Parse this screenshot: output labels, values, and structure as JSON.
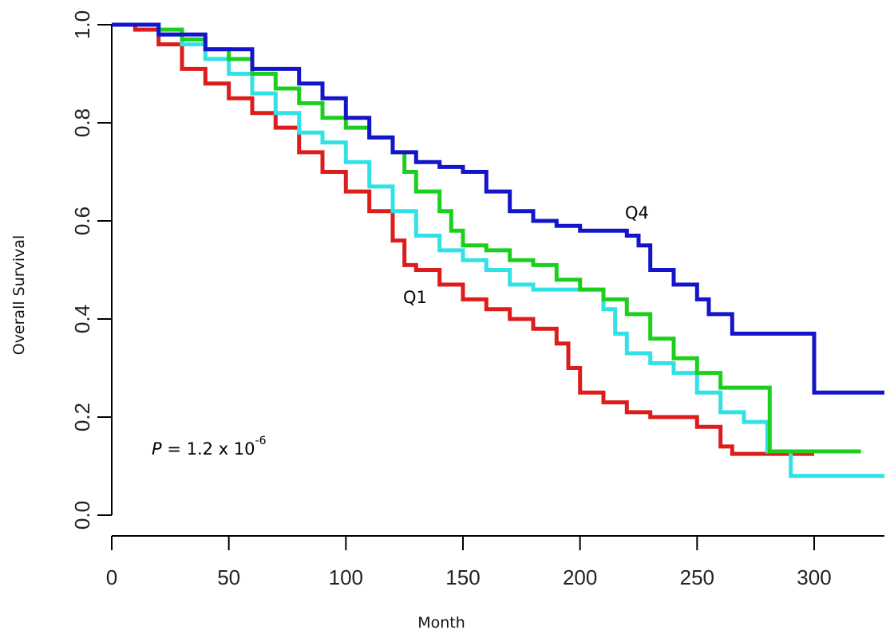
{
  "chart_data": {
    "type": "line",
    "step": true,
    "xlabel": "Month",
    "ylabel": "Overall Survival",
    "xlim": [
      0,
      330
    ],
    "ylim": [
      0,
      1.0
    ],
    "xticks": [
      0,
      50,
      100,
      150,
      200,
      250,
      300
    ],
    "yticks": [
      0.0,
      0.2,
      0.4,
      0.6,
      0.8,
      1.0
    ],
    "ytick_labels": [
      "0.0",
      "0.2",
      "0.4",
      "0.6",
      "0.8",
      "1.0"
    ],
    "grid": false,
    "annotations": {
      "q4_label": "Q4",
      "q1_label": "Q1",
      "p_value": {
        "italic": "P",
        "text": " = 1.2 x 10",
        "exponent": "-6"
      }
    },
    "series": [
      {
        "color": "#dd1c1c",
        "label_ref": "q1_label",
        "x": [
          0,
          10,
          20,
          30,
          40,
          50,
          60,
          70,
          80,
          90,
          100,
          110,
          120,
          125,
          130,
          140,
          150,
          160,
          170,
          180,
          190,
          195,
          200,
          210,
          220,
          230,
          250,
          260,
          265,
          300
        ],
        "y": [
          1.0,
          0.99,
          0.96,
          0.91,
          0.88,
          0.85,
          0.82,
          0.79,
          0.74,
          0.7,
          0.66,
          0.62,
          0.56,
          0.51,
          0.5,
          0.47,
          0.44,
          0.42,
          0.4,
          0.38,
          0.35,
          0.3,
          0.25,
          0.23,
          0.21,
          0.2,
          0.18,
          0.14,
          0.125,
          0.125
        ]
      },
      {
        "color": "#32e1e6",
        "x": [
          0,
          20,
          30,
          40,
          50,
          60,
          70,
          80,
          90,
          100,
          110,
          120,
          130,
          140,
          150,
          160,
          170,
          180,
          200,
          210,
          215,
          220,
          230,
          240,
          250,
          260,
          270,
          280,
          290,
          300,
          330
        ],
        "y": [
          1.0,
          0.98,
          0.96,
          0.93,
          0.9,
          0.86,
          0.82,
          0.78,
          0.76,
          0.72,
          0.67,
          0.62,
          0.57,
          0.54,
          0.52,
          0.5,
          0.47,
          0.46,
          0.46,
          0.42,
          0.37,
          0.33,
          0.31,
          0.29,
          0.25,
          0.21,
          0.19,
          0.13,
          0.08,
          0.08,
          0.08
        ]
      },
      {
        "color": "#1ccf1c",
        "x": [
          0,
          20,
          30,
          40,
          50,
          60,
          70,
          80,
          90,
          100,
          110,
          120,
          125,
          130,
          140,
          145,
          150,
          160,
          170,
          180,
          190,
          200,
          210,
          220,
          230,
          240,
          250,
          260,
          270,
          280,
          281,
          290,
          300,
          320
        ],
        "y": [
          1.0,
          0.99,
          0.97,
          0.95,
          0.93,
          0.9,
          0.87,
          0.84,
          0.81,
          0.79,
          0.77,
          0.74,
          0.7,
          0.66,
          0.62,
          0.58,
          0.55,
          0.54,
          0.52,
          0.51,
          0.48,
          0.46,
          0.44,
          0.41,
          0.36,
          0.32,
          0.29,
          0.26,
          0.26,
          0.26,
          0.13,
          0.13,
          0.13,
          0.13
        ]
      },
      {
        "color": "#1414c8",
        "label_ref": "q4_label",
        "x": [
          0,
          20,
          40,
          60,
          80,
          90,
          100,
          110,
          120,
          130,
          140,
          150,
          160,
          170,
          180,
          190,
          200,
          220,
          225,
          230,
          240,
          250,
          255,
          265,
          280,
          300,
          330
        ],
        "y": [
          1.0,
          0.98,
          0.95,
          0.91,
          0.88,
          0.85,
          0.81,
          0.77,
          0.74,
          0.72,
          0.71,
          0.7,
          0.66,
          0.62,
          0.6,
          0.59,
          0.58,
          0.57,
          0.55,
          0.5,
          0.47,
          0.44,
          0.41,
          0.37,
          0.37,
          0.25,
          0.25
        ]
      }
    ]
  }
}
